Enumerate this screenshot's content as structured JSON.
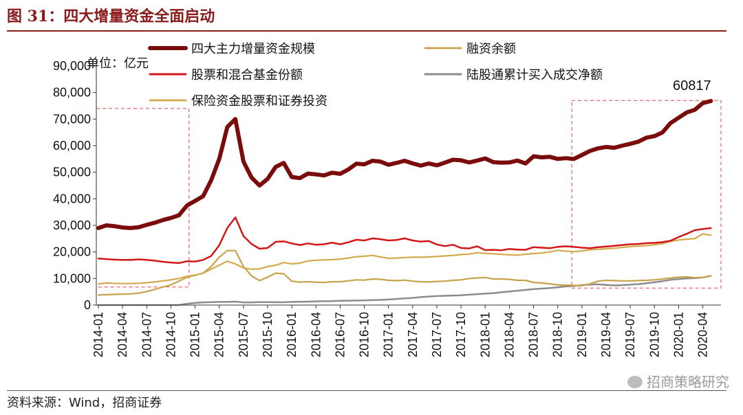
{
  "figure": {
    "title": "图 31：四大增量资金全面启动",
    "source": "资料来源：Wind，招商证券",
    "watermark": "招商策略研究",
    "unit": "单位：亿元",
    "annotation": "60817"
  },
  "colors": {
    "title": "#8b1a1a",
    "total": "#7b0c0c",
    "fund": "#d41515",
    "margin": "#c8a24a",
    "northbound": "#8c8c8c",
    "insurance": "#d4a84c",
    "highlight_box": "#e04040"
  },
  "chart_data": {
    "type": "line",
    "ylim": [
      0,
      90000
    ],
    "yticks": [
      0,
      10000,
      20000,
      30000,
      40000,
      50000,
      60000,
      70000,
      80000,
      90000
    ],
    "ytick_labels": [
      "0",
      "10,000",
      "20,000",
      "30,000",
      "40,000",
      "50,000",
      "60,000",
      "70,000",
      "80,000",
      "90,000"
    ],
    "x_tick_labels": [
      "2014-01",
      "2014-04",
      "2014-07",
      "2014-10",
      "2015-01",
      "2015-04",
      "2015-07",
      "2015-10",
      "2016-01",
      "2016-04",
      "2016-07",
      "2016-10",
      "2017-01",
      "2017-04",
      "2017-07",
      "2017-10",
      "2018-01",
      "2018-04",
      "2018-07",
      "2018-10",
      "2019-01",
      "2019-04",
      "2019-07",
      "2019-10",
      "2020-01",
      "2020-04"
    ],
    "x_start": "2014-01",
    "x_end": "2020-06",
    "grid": false,
    "legend_position": "top",
    "highlight_ranges": [
      [
        "2014-01",
        "2014-12"
      ],
      [
        "2018-12",
        "2020-06"
      ]
    ],
    "series": [
      {
        "name": "四大主力增量资金规模",
        "key": "total",
        "values": [
          29000,
          30000,
          29700,
          29200,
          29000,
          29300,
          30200,
          31000,
          32000,
          32800,
          33800,
          37500,
          39200,
          41000,
          47000,
          55000,
          67000,
          70000,
          54000,
          48000,
          45000,
          47500,
          52000,
          53500,
          48200,
          47800,
          49500,
          49200,
          48800,
          49800,
          49400,
          51000,
          53200,
          53000,
          54300,
          54000,
          52800,
          53500,
          54300,
          53300,
          52500,
          53300,
          52600,
          53600,
          54700,
          54500,
          53700,
          54400,
          55200,
          53800,
          53600,
          53700,
          54400,
          53300,
          56000,
          55600,
          55800,
          55000,
          55300,
          55000,
          56500,
          58000,
          59000,
          59500,
          59200,
          60000,
          60700,
          61500,
          63000,
          63600,
          65000,
          68500,
          70500,
          72500,
          73500,
          76000,
          76800
        ]
      },
      {
        "name": "股票和混合基金份额",
        "key": "fund",
        "values": [
          17500,
          17300,
          17100,
          17000,
          17000,
          17200,
          17000,
          16700,
          16300,
          16000,
          15800,
          16500,
          16400,
          17000,
          18500,
          22500,
          29000,
          33000,
          26000,
          23000,
          21200,
          21500,
          23800,
          24000,
          23200,
          22600,
          23200,
          22700,
          22900,
          23500,
          22900,
          23600,
          24600,
          24300,
          25100,
          24800,
          24300,
          24500,
          25100,
          24300,
          23900,
          24100,
          22800,
          22200,
          22700,
          21500,
          21300,
          22100,
          20700,
          20800,
          20600,
          21100,
          20900,
          20800,
          21800,
          21600,
          21400,
          21900,
          22100,
          21900,
          21600,
          21400,
          21800,
          22000,
          22300,
          22600,
          22900,
          23000,
          23300,
          23400,
          23700,
          24200,
          25600,
          26800,
          28200,
          28600,
          29000
        ]
      },
      {
        "name": "融资余额",
        "key": "margin",
        "values": [
          3800,
          3900,
          4000,
          4100,
          4200,
          4500,
          5100,
          5900,
          6800,
          7600,
          9000,
          10500,
          11200,
          12000,
          14500,
          18000,
          20500,
          20500,
          14500,
          11000,
          9200,
          10500,
          12000,
          11800,
          9000,
          8600,
          8800,
          8600,
          8500,
          8800,
          8800,
          9100,
          9500,
          9400,
          9800,
          9700,
          9300,
          9200,
          9400,
          9000,
          8800,
          8700,
          8900,
          9000,
          9300,
          9500,
          10000,
          10200,
          10400,
          9800,
          9800,
          9700,
          9300,
          9300,
          8500,
          8300,
          8000,
          7600,
          7500,
          7400,
          7300,
          8000,
          9000,
          9300,
          9200,
          9100,
          9100,
          9200,
          9300,
          9500,
          9800,
          10200,
          10500,
          10600,
          10300,
          10400,
          11000
        ]
      },
      {
        "name": "陆股通累计买入成交净额",
        "key": "northbound",
        "values": [
          0,
          0,
          0,
          0,
          0,
          0,
          0,
          0,
          0,
          0,
          0,
          500,
          800,
          1000,
          1100,
          1200,
          1200,
          1300,
          1000,
          1000,
          1100,
          1100,
          1050,
          1050,
          1200,
          1250,
          1300,
          1400,
          1450,
          1500,
          1600,
          1650,
          1700,
          1750,
          1850,
          1950,
          2100,
          2300,
          2500,
          2700,
          3000,
          3200,
          3400,
          3500,
          3600,
          3700,
          3900,
          4100,
          4300,
          4500,
          4800,
          5100,
          5400,
          5700,
          6000,
          6200,
          6400,
          6700,
          7000,
          7200,
          7500,
          7700,
          7800,
          7600,
          7400,
          7500,
          7700,
          7900,
          8200,
          8600,
          9000,
          9500,
          9800,
          10000,
          10100,
          10400,
          11000
        ]
      },
      {
        "name": "保险资金股票和证券投资",
        "key": "insurance",
        "values": [
          8000,
          8300,
          8200,
          8100,
          8100,
          8200,
          8400,
          8700,
          9100,
          9500,
          10000,
          10800,
          11300,
          12000,
          13500,
          15000,
          16500,
          15500,
          14000,
          13500,
          13600,
          14500,
          15000,
          16000,
          15500,
          15800,
          16600,
          16900,
          17000,
          17100,
          17300,
          17700,
          18200,
          18400,
          18700,
          18100,
          17600,
          17700,
          17900,
          18000,
          18000,
          18100,
          18300,
          18500,
          18700,
          19000,
          19200,
          19700,
          19500,
          19300,
          19100,
          18900,
          18800,
          19100,
          19400,
          19600,
          20000,
          20600,
          20300,
          20100,
          20400,
          20800,
          21000,
          21200,
          21400,
          21700,
          22000,
          22200,
          22400,
          22700,
          23100,
          24000,
          24500,
          24800,
          25000,
          26800,
          26300
        ]
      }
    ]
  }
}
